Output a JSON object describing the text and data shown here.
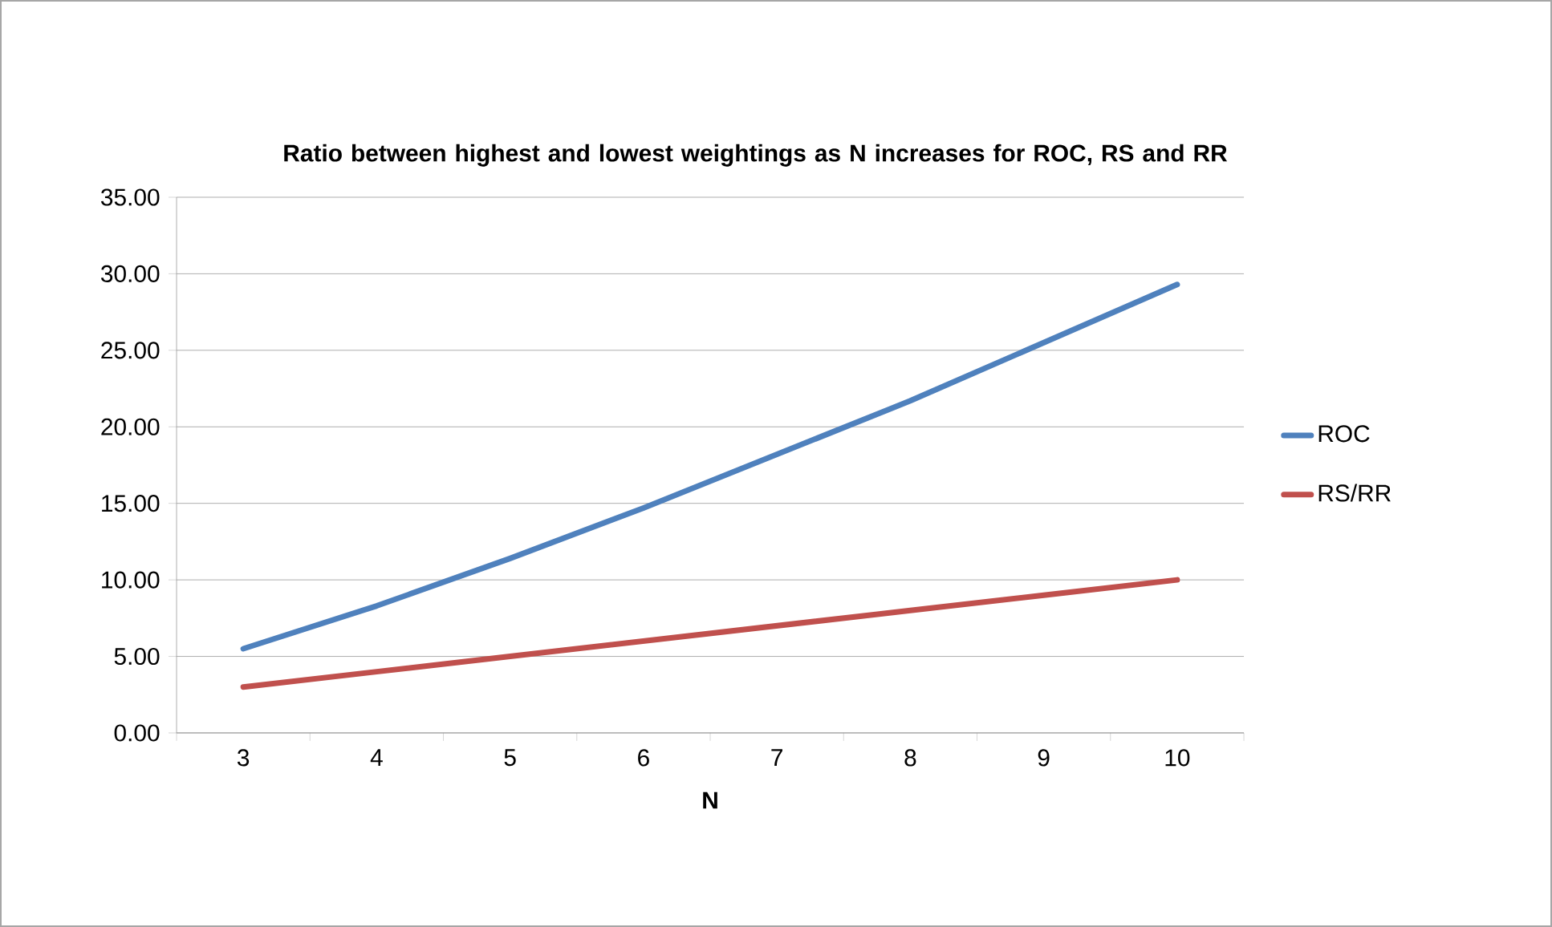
{
  "chart_data": {
    "type": "line",
    "title": "**Ratio between highest and lowest weightings as N increases for ROC, RS and RR**",
    "xlabel": "**N**",
    "categories": [
      "3",
      "4",
      "5",
      "6",
      "7",
      "8",
      "9",
      "10"
    ],
    "series": [
      {
        "name": "ROC",
        "color": "#4f81bd",
        "values": [
          5.5,
          8.3,
          11.4,
          14.7,
          18.2,
          21.7,
          25.5,
          29.3
        ]
      },
      {
        "name": "RS/RR",
        "color": "#c0504d",
        "values": [
          3,
          4,
          5,
          6,
          7,
          8,
          9,
          10
        ]
      }
    ],
    "ylim": [
      0,
      35
    ],
    "yticks": [
      {
        "value": 0,
        "label": "0.00"
      },
      {
        "value": 5,
        "label": "5.00"
      },
      {
        "value": 10,
        "label": "10.00"
      },
      {
        "value": 15,
        "label": "15.00"
      },
      {
        "value": 20,
        "label": "20.00"
      },
      {
        "value": 25,
        "label": "25.00"
      },
      {
        "value": 30,
        "label": "30.00"
      },
      {
        "value": 35,
        "label": "35.00"
      }
    ],
    "grid": "y",
    "legend": "right",
    "marker": "none",
    "line_style": "solid"
  }
}
